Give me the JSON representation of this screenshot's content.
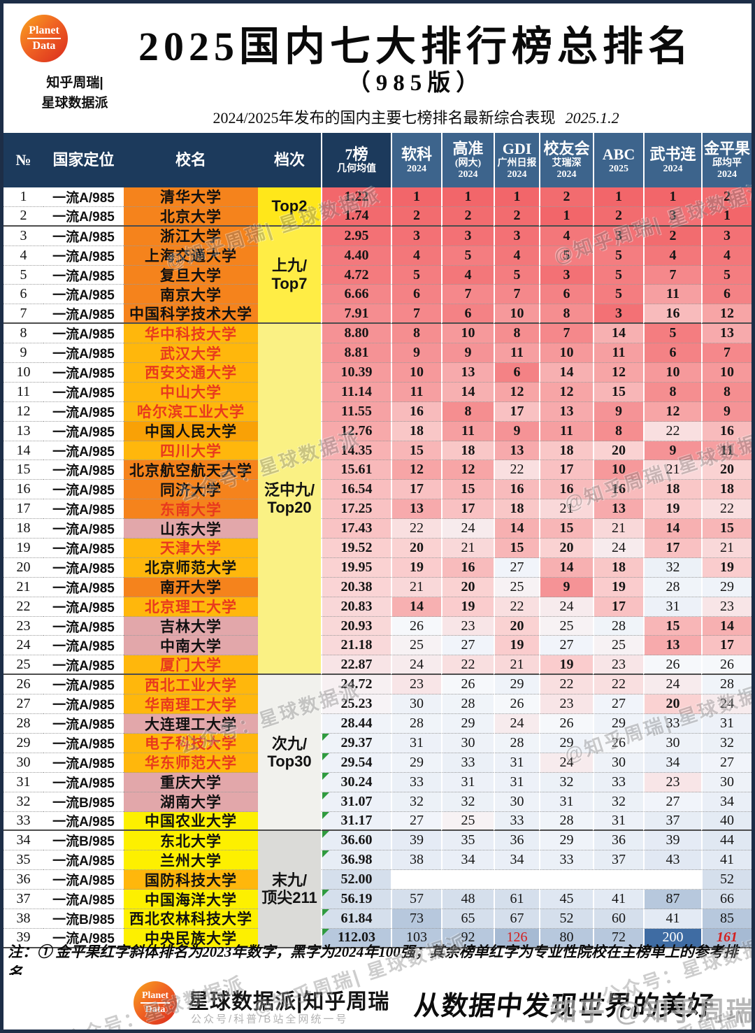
{
  "page": {
    "logo": {
      "line1": "Planet",
      "line2": "Data"
    },
    "byline": [
      "知乎周瑞|",
      "星球数据派"
    ],
    "title": "2025国内七大排行榜总排名",
    "edition": "（985版）",
    "dateline": "2024/2025年发布的国内主要七榜排名最新综合表现",
    "date": "2025.1.2"
  },
  "table": {
    "columns": [
      {
        "lines": [
          "№"
        ]
      },
      {
        "lines": [
          "国家定位"
        ]
      },
      {
        "lines": [
          "校名"
        ]
      },
      {
        "lines": [
          "档次"
        ]
      },
      {
        "lines": [
          "7榜",
          "几何均值"
        ]
      },
      {
        "lines": [
          "软科",
          "2024"
        ]
      },
      {
        "lines": [
          "高准",
          "(网大)",
          "2024"
        ]
      },
      {
        "lines": [
          "GDI",
          "广州日报",
          "2024"
        ]
      },
      {
        "lines": [
          "校友会",
          "艾瑞深",
          "2024"
        ]
      },
      {
        "lines": [
          "ABC",
          "2025"
        ]
      },
      {
        "lines": [
          "武书连",
          "2024"
        ]
      },
      {
        "lines": [
          "金平果",
          "邱均平",
          "2024"
        ]
      }
    ],
    "tiers": [
      {
        "label": [
          "Top2"
        ],
        "from": 1,
        "to": 2,
        "bg": "#FFE71A"
      },
      {
        "label": [
          "上九/",
          "Top7"
        ],
        "from": 3,
        "to": 7,
        "bg": "#FFED45"
      },
      {
        "label": [
          "泛中九/",
          "Top20"
        ],
        "from": 8,
        "to": 25,
        "bg": "#FAF184"
      },
      {
        "label": [
          "次九/",
          "Top30"
        ],
        "from": 26,
        "to": 33,
        "bg": "#F1F1ED"
      },
      {
        "label": [
          "末九/",
          "顶尖211"
        ],
        "from": 34,
        "to": 39,
        "bg": "#DBDBD8"
      }
    ],
    "name_styles": {
      "orange": {
        "bg": "#F5831C",
        "fg": "#111111"
      },
      "orangeRed": {
        "bg": "#F5831C",
        "fg": "#E8391E"
      },
      "gold": {
        "bg": "#FFB70C",
        "fg": "#111111"
      },
      "goldRed": {
        "bg": "#FFB70C",
        "fg": "#E8391E"
      },
      "amber": {
        "bg": "#F9A106",
        "fg": "#111111"
      },
      "pink": {
        "bg": "#E2A7AA",
        "fg": "#111111"
      },
      "yellow": {
        "bg": "#FDF000",
        "fg": "#111111"
      }
    },
    "rows": [
      {
        "no": 1,
        "pos": "一流A/985",
        "name": "清华大学",
        "style": "orange",
        "mean": "1.22",
        "ranks": [
          1,
          1,
          1,
          2,
          1,
          1,
          2
        ]
      },
      {
        "no": 2,
        "pos": "一流A/985",
        "name": "北京大学",
        "style": "orange",
        "mean": "1.74",
        "ranks": [
          2,
          2,
          2,
          1,
          2,
          3,
          1
        ]
      },
      {
        "no": 3,
        "pos": "一流A/985",
        "name": "浙江大学",
        "style": "orange",
        "mean": "2.95",
        "ranks": [
          3,
          3,
          3,
          4,
          3,
          2,
          3
        ]
      },
      {
        "no": 4,
        "pos": "一流A/985",
        "name": "上海交通大学",
        "style": "orange",
        "mean": "4.40",
        "ranks": [
          4,
          5,
          4,
          5,
          5,
          4,
          4
        ]
      },
      {
        "no": 5,
        "pos": "一流A/985",
        "name": "复旦大学",
        "style": "orange",
        "mean": "4.72",
        "ranks": [
          5,
          4,
          5,
          3,
          5,
          7,
          5
        ]
      },
      {
        "no": 6,
        "pos": "一流A/985",
        "name": "南京大学",
        "style": "orange",
        "mean": "6.66",
        "ranks": [
          6,
          7,
          7,
          6,
          5,
          11,
          6
        ]
      },
      {
        "no": 7,
        "pos": "一流A/985",
        "name": "中国科学技术大学",
        "style": "orange",
        "mean": "7.91",
        "ranks": [
          7,
          6,
          10,
          8,
          3,
          16,
          12
        ]
      },
      {
        "no": 8,
        "pos": "一流A/985",
        "name": "华中科技大学",
        "style": "goldRed",
        "mean": "8.80",
        "ranks": [
          8,
          10,
          8,
          7,
          14,
          5,
          13
        ]
      },
      {
        "no": 9,
        "pos": "一流A/985",
        "name": "武汉大学",
        "style": "goldRed",
        "mean": "8.81",
        "ranks": [
          9,
          9,
          11,
          10,
          11,
          6,
          7
        ]
      },
      {
        "no": 10,
        "pos": "一流A/985",
        "name": "西安交通大学",
        "style": "goldRed",
        "mean": "10.39",
        "ranks": [
          10,
          13,
          6,
          14,
          12,
          10,
          10
        ]
      },
      {
        "no": 11,
        "pos": "一流A/985",
        "name": "中山大学",
        "style": "goldRed",
        "mean": "11.14",
        "ranks": [
          11,
          14,
          12,
          12,
          15,
          8,
          8
        ]
      },
      {
        "no": 12,
        "pos": "一流A/985",
        "name": "哈尔滨工业大学",
        "style": "goldRed",
        "mean": "11.55",
        "ranks": [
          16,
          8,
          17,
          13,
          9,
          12,
          9
        ]
      },
      {
        "no": 13,
        "pos": "一流A/985",
        "name": "中国人民大学",
        "style": "amber",
        "mean": "12.76",
        "ranks": [
          18,
          11,
          9,
          11,
          8,
          22,
          16
        ]
      },
      {
        "no": 14,
        "pos": "一流A/985",
        "name": "四川大学",
        "style": "goldRed",
        "mean": "14.35",
        "ranks": [
          15,
          18,
          13,
          18,
          20,
          9,
          11
        ]
      },
      {
        "no": 15,
        "pos": "一流A/985",
        "name": "北京航空航天大学",
        "style": "orange",
        "mean": "15.61",
        "ranks": [
          12,
          12,
          22,
          17,
          10,
          21,
          20
        ]
      },
      {
        "no": 16,
        "pos": "一流A/985",
        "name": "同济大学",
        "style": "orange",
        "mean": "16.54",
        "ranks": [
          17,
          15,
          16,
          16,
          16,
          18,
          18
        ]
      },
      {
        "no": 17,
        "pos": "一流A/985",
        "name": "东南大学",
        "style": "orangeRed",
        "mean": "17.25",
        "ranks": [
          13,
          17,
          18,
          21,
          13,
          19,
          22
        ]
      },
      {
        "no": 18,
        "pos": "一流A/985",
        "name": "山东大学",
        "style": "pink",
        "mean": "17.43",
        "ranks": [
          22,
          24,
          14,
          15,
          21,
          14,
          15
        ]
      },
      {
        "no": 19,
        "pos": "一流A/985",
        "name": "天津大学",
        "style": "goldRed",
        "mean": "19.52",
        "ranks": [
          20,
          21,
          15,
          20,
          24,
          17,
          21
        ]
      },
      {
        "no": 20,
        "pos": "一流A/985",
        "name": "北京师范大学",
        "style": "gold",
        "mean": "19.95",
        "ranks": [
          19,
          16,
          27,
          14,
          18,
          32,
          19
        ]
      },
      {
        "no": 21,
        "pos": "一流A/985",
        "name": "南开大学",
        "style": "orange",
        "mean": "20.38",
        "ranks": [
          21,
          20,
          25,
          9,
          19,
          28,
          29
        ]
      },
      {
        "no": 22,
        "pos": "一流A/985",
        "name": "北京理工大学",
        "style": "goldRed",
        "mean": "20.83",
        "ranks": [
          14,
          19,
          22,
          24,
          17,
          31,
          23
        ]
      },
      {
        "no": 23,
        "pos": "一流A/985",
        "name": "吉林大学",
        "style": "pink",
        "mean": "20.93",
        "ranks": [
          26,
          23,
          20,
          25,
          28,
          15,
          14
        ]
      },
      {
        "no": 24,
        "pos": "一流A/985",
        "name": "中南大学",
        "style": "pink",
        "mean": "21.18",
        "ranks": [
          25,
          27,
          19,
          27,
          25,
          13,
          17
        ]
      },
      {
        "no": 25,
        "pos": "一流A/985",
        "name": "厦门大学",
        "style": "goldRed",
        "mean": "22.87",
        "ranks": [
          24,
          22,
          21,
          19,
          23,
          26,
          26
        ]
      },
      {
        "no": 26,
        "pos": "一流A/985",
        "name": "西北工业大学",
        "style": "goldRed",
        "mean": "24.72",
        "ranks": [
          23,
          26,
          29,
          22,
          22,
          24,
          28
        ]
      },
      {
        "no": 27,
        "pos": "一流A/985",
        "name": "华南理工大学",
        "style": "goldRed",
        "mean": "25.23",
        "ranks": [
          30,
          28,
          26,
          23,
          27,
          20,
          24
        ]
      },
      {
        "no": 28,
        "pos": "一流A/985",
        "name": "大连理工大学",
        "style": "pink",
        "mean": "28.44",
        "ranks": [
          28,
          29,
          24,
          26,
          29,
          33,
          31
        ]
      },
      {
        "no": 29,
        "pos": "一流A/985",
        "name": "电子科技大学",
        "style": "goldRed",
        "mean": "29.37",
        "ranks": [
          31,
          30,
          28,
          29,
          26,
          30,
          32
        ],
        "marker": true
      },
      {
        "no": 30,
        "pos": "一流A/985",
        "name": "华东师范大学",
        "style": "goldRed",
        "mean": "29.54",
        "ranks": [
          29,
          33,
          31,
          24,
          30,
          34,
          27
        ],
        "marker": true
      },
      {
        "no": 31,
        "pos": "一流A/985",
        "name": "重庆大学",
        "style": "pink",
        "mean": "30.24",
        "ranks": [
          33,
          31,
          31,
          32,
          33,
          23,
          30
        ],
        "marker": true
      },
      {
        "no": 32,
        "pos": "一流B/985",
        "name": "湖南大学",
        "style": "pink",
        "mean": "31.07",
        "ranks": [
          32,
          32,
          30,
          31,
          32,
          27,
          34
        ],
        "marker": true
      },
      {
        "no": 33,
        "pos": "一流A/985",
        "name": "中国农业大学",
        "style": "yellow",
        "mean": "31.17",
        "ranks": [
          27,
          25,
          33,
          28,
          31,
          37,
          40
        ],
        "marker": true
      },
      {
        "no": 34,
        "pos": "一流B/985",
        "name": "东北大学",
        "style": "yellow",
        "mean": "36.60",
        "ranks": [
          39,
          35,
          36,
          29,
          36,
          39,
          44
        ],
        "marker": true
      },
      {
        "no": 35,
        "pos": "一流A/985",
        "name": "兰州大学",
        "style": "yellow",
        "mean": "36.98",
        "ranks": [
          38,
          34,
          34,
          33,
          37,
          43,
          41
        ],
        "marker": true
      },
      {
        "no": 36,
        "pos": "一流A/985",
        "name": "国防科技大学",
        "style": "gold",
        "mean": "52.00",
        "ranks": [
          null,
          null,
          null,
          null,
          null,
          null,
          52
        ]
      },
      {
        "no": 37,
        "pos": "一流A/985",
        "name": "中国海洋大学",
        "style": "yellow",
        "mean": "56.19",
        "ranks": [
          57,
          48,
          61,
          45,
          41,
          87,
          66
        ],
        "marker": true
      },
      {
        "no": 38,
        "pos": "一流B/985",
        "name": "西北农林科技大学",
        "style": "yellow",
        "mean": "61.84",
        "ranks": [
          73,
          65,
          67,
          52,
          60,
          41,
          85
        ],
        "marker": true
      },
      {
        "no": 39,
        "pos": "一流A/985",
        "name": "中央民族大学",
        "style": "yellow",
        "mean": "112.03",
        "ranks": [
          103,
          92,
          126,
          80,
          72,
          200,
          161
        ],
        "marker": true,
        "flags": {
          "2": "red",
          "6": "reditalic"
        }
      }
    ],
    "section_end_rows": [
      2,
      7,
      25,
      33
    ]
  },
  "footnote": "注：① 金平果红字斜体排名为2023年数字，黑字为2024年100强；其余榜单红字为专业性院校在主榜单上的参考排名",
  "footer": {
    "logo": {
      "line1": "Planet",
      "line2": "Data"
    },
    "brand": "星球数据派|知乎周瑞",
    "brand_sub": "公众号/科普/B站全网统一号",
    "slogan": "从数据中发现世界的美好",
    "zhihu_watermark": "知乎 @知乎周瑞"
  },
  "watermark_texts": {
    "t1": "@知乎周瑞| 星球数据派",
    "t2": "公众号：星球数据派"
  }
}
